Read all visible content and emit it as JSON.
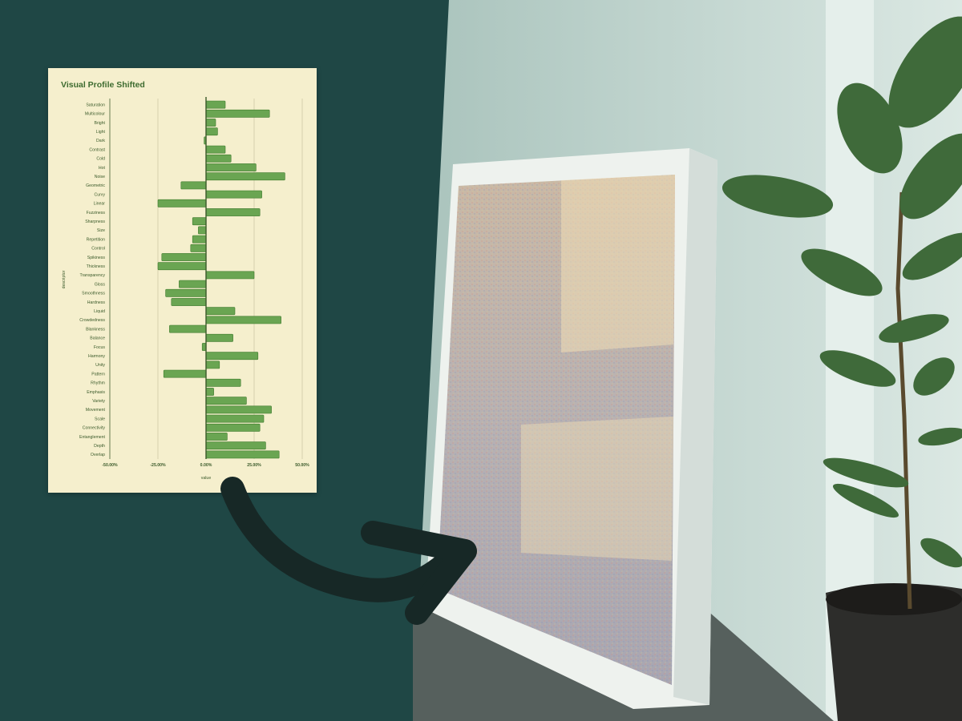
{
  "colors": {
    "background": "#1f4745",
    "card": "#f5efcd",
    "bar_fill": "#6aa552",
    "bar_stroke": "#3d7a2c",
    "title": "#3d6b2f",
    "arrow": "#172826"
  },
  "chart_data": {
    "type": "bar",
    "orientation": "horizontal",
    "title": "Visual Profile Shifted",
    "xlabel": "value",
    "ylabel": "descriptor",
    "xlim": [
      -50,
      50
    ],
    "xticks": [
      -50,
      -25,
      0,
      25,
      50
    ],
    "xtick_labels": [
      "-50.00%",
      "-25.00%",
      "0.00%",
      "25.00%",
      "50.00%"
    ],
    "grid": true,
    "categories": [
      "Saturation",
      "Multicolour",
      "Bright",
      "Light",
      "Dark",
      "Contrast",
      "Cold",
      "Hot",
      "Noise",
      "Geometric",
      "Curvy",
      "Linear",
      "Fuzziness",
      "Sharpness",
      "Size",
      "Repetition",
      "Control",
      "Spikiness",
      "Thickness",
      "Transparency",
      "Gloss",
      "Smoothness",
      "Hardness",
      "Liquid",
      "Crowdedness",
      "Blankness",
      "Balance",
      "Focus",
      "Harmony",
      "Unity",
      "Pattern",
      "Rhythm",
      "Emphasis",
      "Variety",
      "Movement",
      "Scale",
      "Connectivity",
      "Entanglement",
      "Depth",
      "Overlap"
    ],
    "values": [
      10,
      33,
      5,
      6,
      -1,
      10,
      13,
      26,
      41,
      -13,
      29,
      -25,
      28,
      -7,
      -4,
      -7,
      -8,
      -23,
      -25,
      25,
      -14,
      -21,
      -18,
      15,
      39,
      -19,
      14,
      -2,
      27,
      7,
      -22,
      18,
      4,
      21,
      34,
      30,
      28,
      11,
      31,
      38
    ]
  },
  "photo": {
    "description_icon": "canvas-artwork-with-plant"
  }
}
